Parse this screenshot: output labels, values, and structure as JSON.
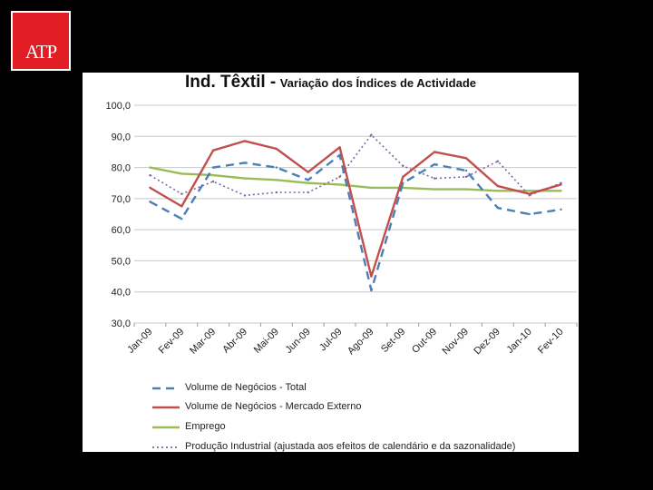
{
  "logo": {
    "text": "ATP"
  },
  "chart_data": {
    "type": "line",
    "title": "Ind. Têxtil -",
    "subtitle": "Variação dos Índices de Actividade",
    "categories": [
      "Jan-09",
      "Fev-09",
      "Mar-09",
      "Abr-09",
      "Mai-09",
      "Jun-09",
      "Jul-09",
      "Ago-09",
      "Set-09",
      "Out-09",
      "Nov-09",
      "Dez-09",
      "Jan-10",
      "Fev-10"
    ],
    "y_tick_labels": [
      "30,0",
      "40,0",
      "50,0",
      "60,0",
      "70,0",
      "80,0",
      "90,0",
      "100,0"
    ],
    "y_ticks": [
      30,
      40,
      50,
      60,
      70,
      80,
      90,
      100
    ],
    "ylim": [
      30,
      100
    ],
    "grid": true,
    "legend_position": "bottom",
    "series": [
      {
        "name": "Volume de Negócios - Total",
        "style": "dashed",
        "color": "#4a7fb8",
        "values": [
          69,
          63.5,
          80,
          81.5,
          80,
          76,
          84,
          40.5,
          75,
          81,
          79,
          67,
          65,
          66.5
        ]
      },
      {
        "name": "Volume de Negócios - Mercado Externo",
        "style": "solid",
        "color": "#c0504d",
        "values": [
          73.5,
          67.5,
          85.5,
          88.5,
          86,
          78.5,
          86.5,
          45,
          77,
          85,
          83,
          74,
          71.5,
          74.5
        ]
      },
      {
        "name": "Emprego",
        "style": "solid",
        "color": "#9bbb59",
        "values": [
          80,
          78,
          77.5,
          76.5,
          76,
          75,
          74.5,
          73.5,
          73.5,
          73,
          73,
          72.5,
          72.5,
          72.5
        ]
      },
      {
        "name": "Produção Industrial (ajustada aos efeitos de calendário e da sazonalidade)",
        "style": "dotted",
        "color": "#8064a2",
        "values": [
          77.5,
          71.5,
          75.5,
          71,
          72,
          72,
          77,
          90.5,
          80.5,
          76.5,
          77,
          82,
          71,
          75
        ]
      }
    ]
  }
}
